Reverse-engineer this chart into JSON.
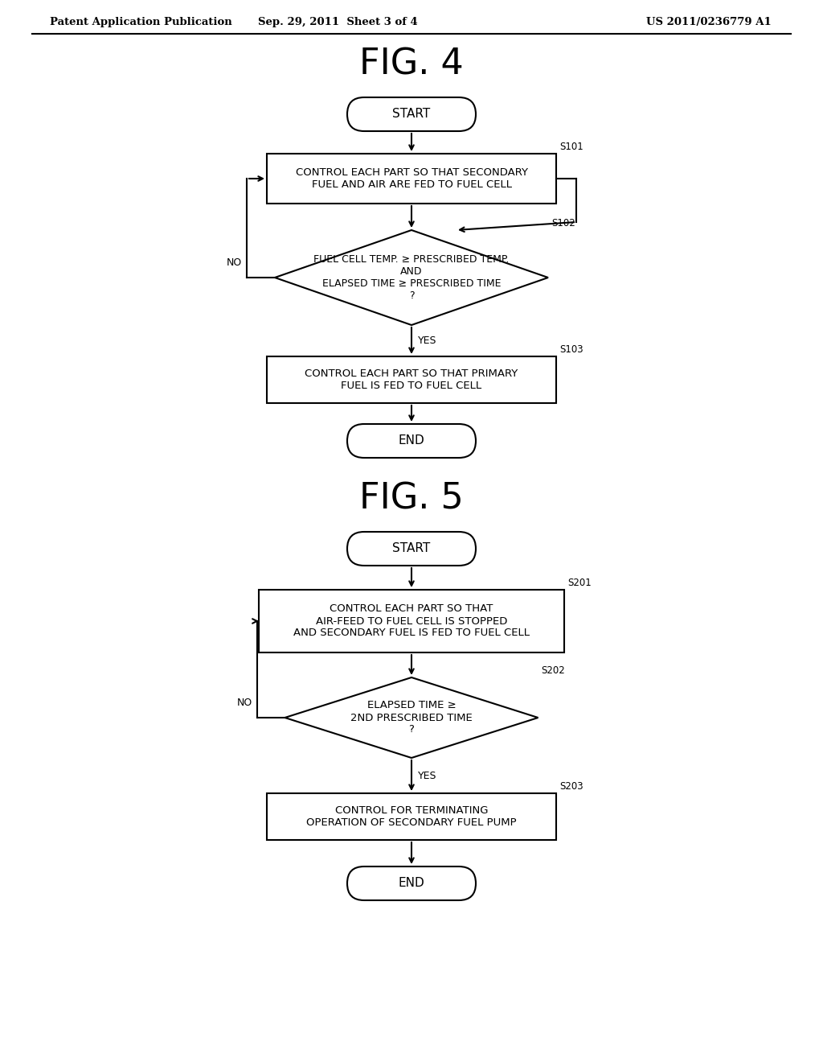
{
  "bg_color": "#ffffff",
  "text_color": "#000000",
  "header_left": "Patent Application Publication",
  "header_center": "Sep. 29, 2011  Sheet 3 of 4",
  "header_right": "US 2011/0236779 A1",
  "fig4_title": "FIG. 4",
  "fig5_title": "FIG. 5",
  "line_color": "#000000",
  "lw": 1.5,
  "fig4_start_label": "START",
  "fig4_s101_label": "CONTROL EACH PART SO THAT SECONDARY\nFUEL AND AIR ARE FED TO FUEL CELL",
  "fig4_s101_step": "S101",
  "fig4_s102_label": "FUEL CELL TEMP. ≥ PRESCRIBED TEMP.\nAND\nELAPSED TIME ≥ PRESCRIBED TIME\n?",
  "fig4_s102_step": "S102",
  "fig4_s103_label": "CONTROL EACH PART SO THAT PRIMARY\nFUEL IS FED TO FUEL CELL",
  "fig4_s103_step": "S103",
  "fig4_end_label": "END",
  "fig5_start_label": "START",
  "fig5_s201_label": "CONTROL EACH PART SO THAT\nAIR-FEED TO FUEL CELL IS STOPPED\nAND SECONDARY FUEL IS FED TO FUEL CELL",
  "fig5_s201_step": "S201",
  "fig5_s202_label": "ELAPSED TIME ≥\n2ND PRESCRIBED TIME\n?",
  "fig5_s202_step": "S202",
  "fig5_s203_label": "CONTROL FOR TERMINATING\nOPERATION OF SECONDARY FUEL PUMP",
  "fig5_s203_step": "S203",
  "fig5_end_label": "END",
  "yes_label": "YES",
  "no_label": "NO"
}
